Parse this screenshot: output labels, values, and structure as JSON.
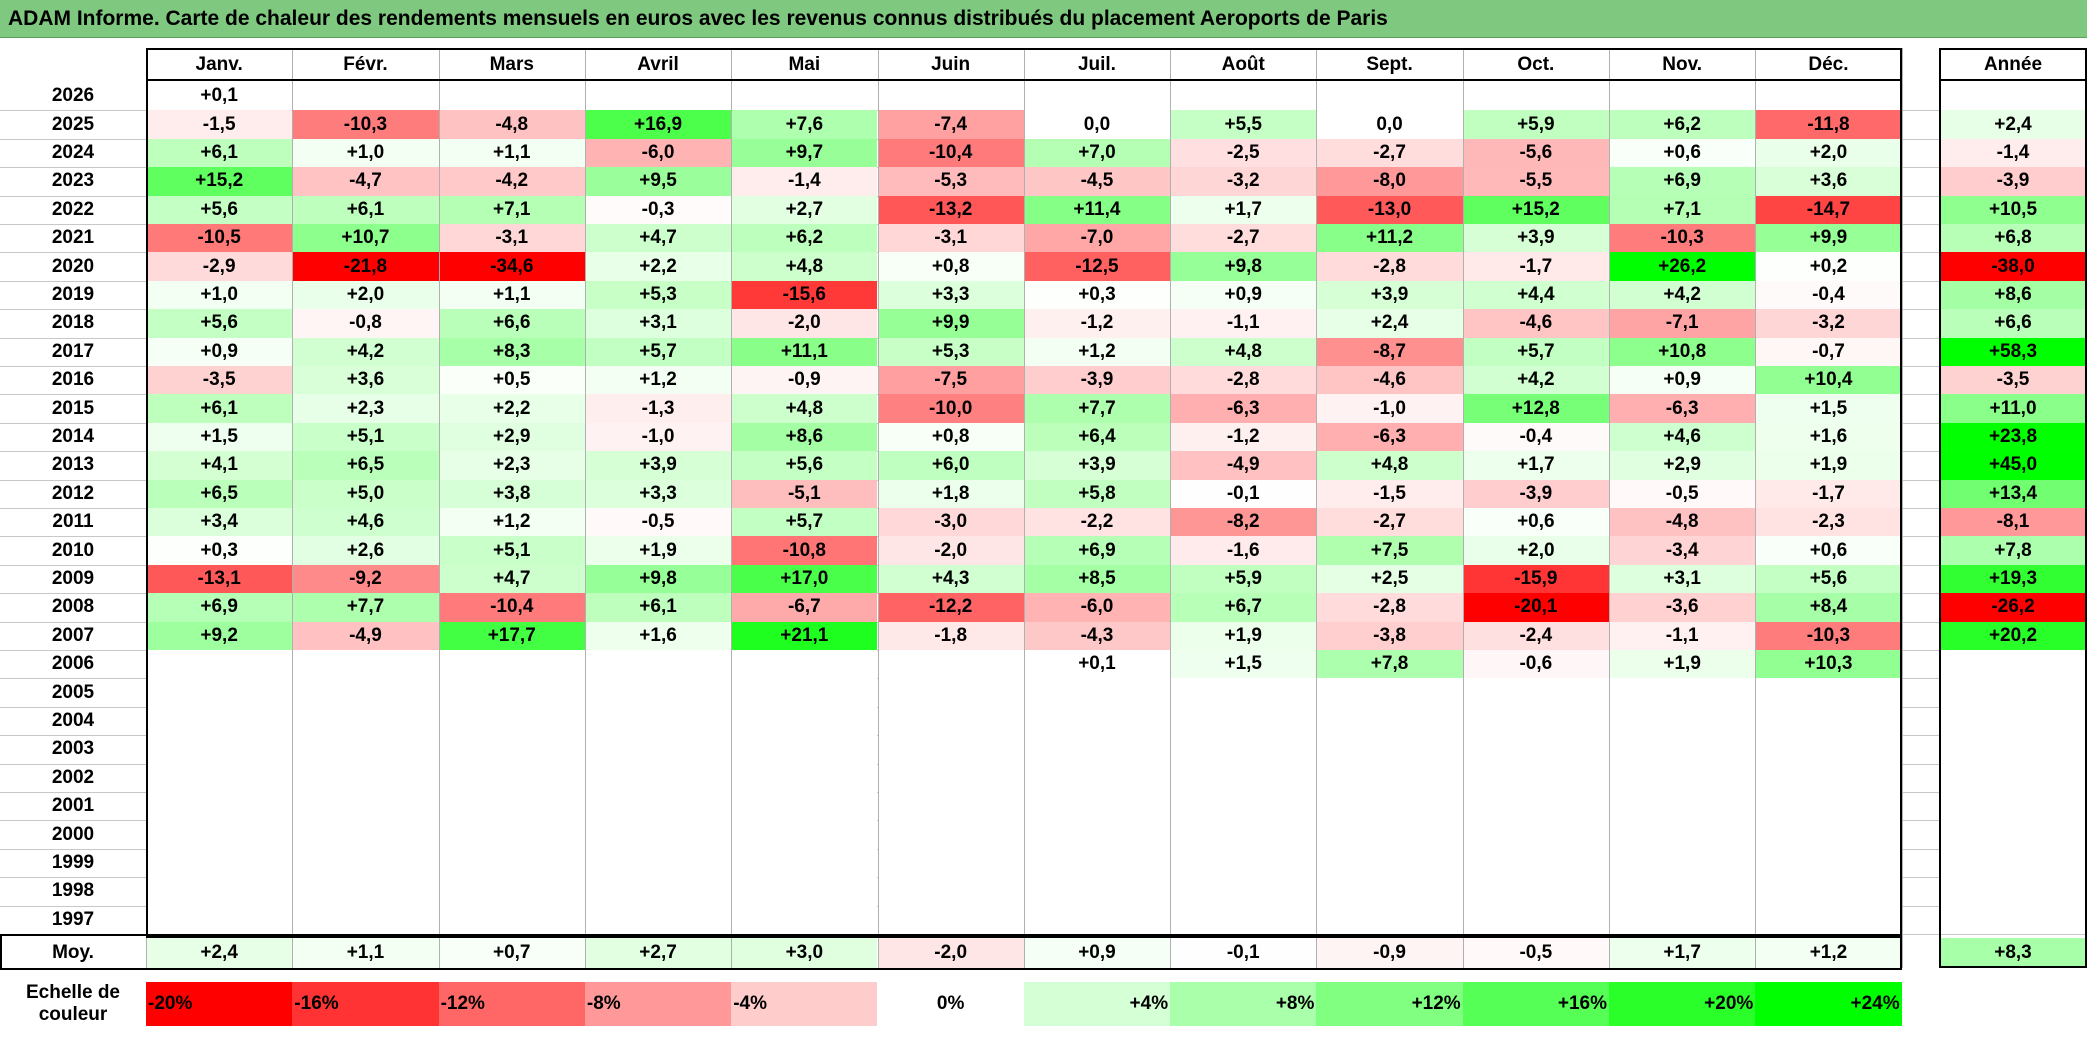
{
  "title": "ADAM Informe. Carte de chaleur des rendements mensuels en euros avec les revenus connus distribués du placement Aeroports de Paris",
  "chart_data": {
    "type": "heatmap",
    "title": "ADAM Informe. Carte de chaleur des rendements mensuels en euros avec les revenus connus distribués du placement Aeroports de Paris",
    "columns": [
      "Janv.",
      "Févr.",
      "Mars",
      "Avril",
      "Mai",
      "Juin",
      "Juil.",
      "Août",
      "Sept.",
      "Oct.",
      "Nov.",
      "Déc."
    ],
    "year_header": "Année",
    "rows": [
      {
        "year": "2026",
        "months": [
          "+0,1",
          "",
          "",
          "",
          "",
          "",
          "",
          "",
          "",
          "",
          "",
          ""
        ],
        "annual": ""
      },
      {
        "year": "2025",
        "months": [
          "-1,5",
          "-10,3",
          "-4,8",
          "+16,9",
          "+7,6",
          "-7,4",
          "0,0",
          "+5,5",
          "0,0",
          "+5,9",
          "+6,2",
          "-11,8"
        ],
        "annual": "+2,4"
      },
      {
        "year": "2024",
        "months": [
          "+6,1",
          "+1,0",
          "+1,1",
          "-6,0",
          "+9,7",
          "-10,4",
          "+7,0",
          "-2,5",
          "-2,7",
          "-5,6",
          "+0,6",
          "+2,0"
        ],
        "annual": "-1,4"
      },
      {
        "year": "2023",
        "months": [
          "+15,2",
          "-4,7",
          "-4,2",
          "+9,5",
          "-1,4",
          "-5,3",
          "-4,5",
          "-3,2",
          "-8,0",
          "-5,5",
          "+6,9",
          "+3,6"
        ],
        "annual": "-3,9"
      },
      {
        "year": "2022",
        "months": [
          "+5,6",
          "+6,1",
          "+7,1",
          "-0,3",
          "+2,7",
          "-13,2",
          "+11,4",
          "+1,7",
          "-13,0",
          "+15,2",
          "+7,1",
          "-14,7"
        ],
        "annual": "+10,5"
      },
      {
        "year": "2021",
        "months": [
          "-10,5",
          "+10,7",
          "-3,1",
          "+4,7",
          "+6,2",
          "-3,1",
          "-7,0",
          "-2,7",
          "+11,2",
          "+3,9",
          "-10,3",
          "+9,9"
        ],
        "annual": "+6,8"
      },
      {
        "year": "2020",
        "months": [
          "-2,9",
          "-21,8",
          "-34,6",
          "+2,2",
          "+4,8",
          "+0,8",
          "-12,5",
          "+9,8",
          "-2,8",
          "-1,7",
          "+26,2",
          "+0,2"
        ],
        "annual": "-38,0"
      },
      {
        "year": "2019",
        "months": [
          "+1,0",
          "+2,0",
          "+1,1",
          "+5,3",
          "-15,6",
          "+3,3",
          "+0,3",
          "+0,9",
          "+3,9",
          "+4,4",
          "+4,2",
          "-0,4"
        ],
        "annual": "+8,6"
      },
      {
        "year": "2018",
        "months": [
          "+5,6",
          "-0,8",
          "+6,6",
          "+3,1",
          "-2,0",
          "+9,9",
          "-1,2",
          "-1,1",
          "+2,4",
          "-4,6",
          "-7,1",
          "-3,2"
        ],
        "annual": "+6,6"
      },
      {
        "year": "2017",
        "months": [
          "+0,9",
          "+4,2",
          "+8,3",
          "+5,7",
          "+11,1",
          "+5,3",
          "+1,2",
          "+4,8",
          "-8,7",
          "+5,7",
          "+10,8",
          "-0,7"
        ],
        "annual": "+58,3"
      },
      {
        "year": "2016",
        "months": [
          "-3,5",
          "+3,6",
          "+0,5",
          "+1,2",
          "-0,9",
          "-7,5",
          "-3,9",
          "-2,8",
          "-4,6",
          "+4,2",
          "+0,9",
          "+10,4"
        ],
        "annual": "-3,5"
      },
      {
        "year": "2015",
        "months": [
          "+6,1",
          "+2,3",
          "+2,2",
          "-1,3",
          "+4,8",
          "-10,0",
          "+7,7",
          "-6,3",
          "-1,0",
          "+12,8",
          "-6,3",
          "+1,5"
        ],
        "annual": "+11,0"
      },
      {
        "year": "2014",
        "months": [
          "+1,5",
          "+5,1",
          "+2,9",
          "-1,0",
          "+8,6",
          "+0,8",
          "+6,4",
          "-1,2",
          "-6,3",
          "-0,4",
          "+4,6",
          "+1,6"
        ],
        "annual": "+23,8"
      },
      {
        "year": "2013",
        "months": [
          "+4,1",
          "+6,5",
          "+2,3",
          "+3,9",
          "+5,6",
          "+6,0",
          "+3,9",
          "-4,9",
          "+4,8",
          "+1,7",
          "+2,9",
          "+1,9"
        ],
        "annual": "+45,0"
      },
      {
        "year": "2012",
        "months": [
          "+6,5",
          "+5,0",
          "+3,8",
          "+3,3",
          "-5,1",
          "+1,8",
          "+5,8",
          "-0,1",
          "-1,5",
          "-3,9",
          "-0,5",
          "-1,7"
        ],
        "annual": "+13,4"
      },
      {
        "year": "2011",
        "months": [
          "+3,4",
          "+4,6",
          "+1,2",
          "-0,5",
          "+5,7",
          "-3,0",
          "-2,2",
          "-8,2",
          "-2,7",
          "+0,6",
          "-4,8",
          "-2,3"
        ],
        "annual": "-8,1"
      },
      {
        "year": "2010",
        "months": [
          "+0,3",
          "+2,6",
          "+5,1",
          "+1,9",
          "-10,8",
          "-2,0",
          "+6,9",
          "-1,6",
          "+7,5",
          "+2,0",
          "-3,4",
          "+0,6"
        ],
        "annual": "+7,8"
      },
      {
        "year": "2009",
        "months": [
          "-13,1",
          "-9,2",
          "+4,7",
          "+9,8",
          "+17,0",
          "+4,3",
          "+8,5",
          "+5,9",
          "+2,5",
          "-15,9",
          "+3,1",
          "+5,6"
        ],
        "annual": "+19,3"
      },
      {
        "year": "2008",
        "months": [
          "+6,9",
          "+7,7",
          "-10,4",
          "+6,1",
          "-6,7",
          "-12,2",
          "-6,0",
          "+6,7",
          "-2,8",
          "-20,1",
          "-3,6",
          "+8,4"
        ],
        "annual": "-26,2"
      },
      {
        "year": "2007",
        "months": [
          "+9,2",
          "-4,9",
          "+17,7",
          "+1,6",
          "+21,1",
          "-1,8",
          "-4,3",
          "+1,9",
          "-3,8",
          "-2,4",
          "-1,1",
          "-10,3"
        ],
        "annual": "+20,2"
      },
      {
        "year": "2006",
        "months": [
          "",
          "",
          "",
          "",
          "",
          "",
          "+0,1",
          "+1,5",
          "+7,8",
          "-0,6",
          "+1,9",
          "+10,3"
        ],
        "annual": ""
      },
      {
        "year": "2005",
        "months": [
          "",
          "",
          "",
          "",
          "",
          "",
          "",
          "",
          "",
          "",
          "",
          ""
        ],
        "annual": ""
      },
      {
        "year": "2004",
        "months": [
          "",
          "",
          "",
          "",
          "",
          "",
          "",
          "",
          "",
          "",
          "",
          ""
        ],
        "annual": ""
      },
      {
        "year": "2003",
        "months": [
          "",
          "",
          "",
          "",
          "",
          "",
          "",
          "",
          "",
          "",
          "",
          ""
        ],
        "annual": ""
      },
      {
        "year": "2002",
        "months": [
          "",
          "",
          "",
          "",
          "",
          "",
          "",
          "",
          "",
          "",
          "",
          ""
        ],
        "annual": ""
      },
      {
        "year": "2001",
        "months": [
          "",
          "",
          "",
          "",
          "",
          "",
          "",
          "",
          "",
          "",
          "",
          ""
        ],
        "annual": ""
      },
      {
        "year": "2000",
        "months": [
          "",
          "",
          "",
          "",
          "",
          "",
          "",
          "",
          "",
          "",
          "",
          ""
        ],
        "annual": ""
      },
      {
        "year": "1999",
        "months": [
          "",
          "",
          "",
          "",
          "",
          "",
          "",
          "",
          "",
          "",
          "",
          ""
        ],
        "annual": ""
      },
      {
        "year": "1998",
        "months": [
          "",
          "",
          "",
          "",
          "",
          "",
          "",
          "",
          "",
          "",
          "",
          ""
        ],
        "annual": ""
      },
      {
        "year": "1997",
        "months": [
          "",
          "",
          "",
          "",
          "",
          "",
          "",
          "",
          "",
          "",
          "",
          ""
        ],
        "annual": ""
      }
    ],
    "average_row": {
      "label": "Moy.",
      "months": [
        "+2,4",
        "+1,1",
        "+0,7",
        "+2,7",
        "+3,0",
        "-2,0",
        "+0,9",
        "-0,1",
        "-0,9",
        "-0,5",
        "+1,7",
        "+1,2"
      ],
      "annual": "+8,3"
    },
    "color_scale": {
      "label": "Echelle de couleur",
      "stops": [
        "-20%",
        "-16%",
        "-12%",
        "-8%",
        "-4%",
        "0%",
        "+4%",
        "+8%",
        "+12%",
        "+16%",
        "+20%",
        "+24%"
      ],
      "stop_values": [
        -20,
        -16,
        -12,
        -8,
        -4,
        0,
        4,
        8,
        12,
        16,
        20,
        24
      ],
      "negative_color": "#ff0000",
      "neutral_color": "#ffffff",
      "positive_color": "#00ff00"
    }
  }
}
